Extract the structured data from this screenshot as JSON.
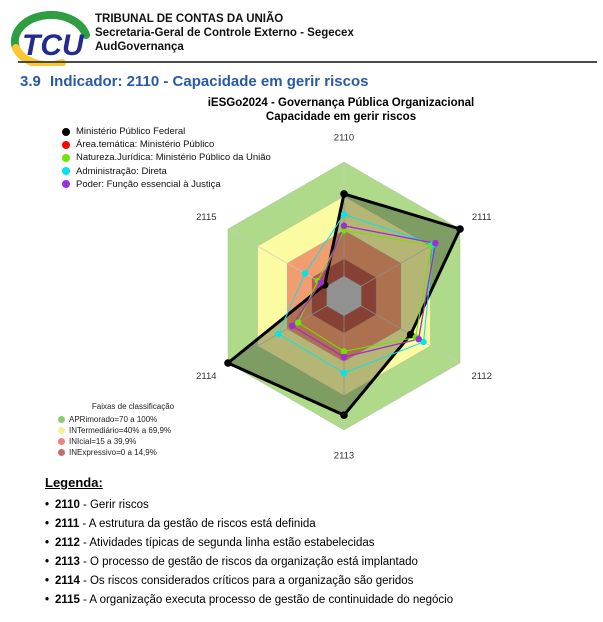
{
  "header": {
    "logo_text": "TCU",
    "org_line1": "TRIBUNAL DE CONTAS DA UNIÃO",
    "org_line2": "Secretaria-Geral de Controle Externo - Segecex",
    "org_line3": "AudGovernança",
    "logo_colors": {
      "blue": "#232c8c",
      "green": "#2e9e41",
      "yellow": "#fdc82f"
    }
  },
  "section": {
    "number": "3.9",
    "title": "Indicador: 2110 - Capacidade em gerir riscos",
    "accent_color": "#2a5aa5"
  },
  "chart_data": {
    "type": "radar",
    "title": "iESGo2024 - Governança Pública Organizacional",
    "subtitle": "Capacidade em gerir riscos",
    "axes": [
      "2110",
      "2111",
      "2112",
      "2113",
      "2114",
      "2115"
    ],
    "axis_range": [
      0,
      100
    ],
    "grid_color": "#c8c8c8",
    "center_hole_color": "#c9c9c9",
    "bands_title": "Faixas de classificação",
    "bands": [
      {
        "label": "APRimorado=70 a 100%",
        "min": 70,
        "max": 100,
        "band_color": "#afda8a",
        "swatch_color": "#8fc878"
      },
      {
        "label": "INTermediário=40% a 69,9%",
        "min": 40,
        "max": 70,
        "band_color": "#fbfba2",
        "swatch_color": "#f2f294"
      },
      {
        "label": "INIcial=15 a 39,9%",
        "min": 15,
        "max": 40,
        "band_color": "#f19d6f",
        "swatch_color": "#ee8282"
      },
      {
        "label": "INExpressivo=0 a 14,9%",
        "min": 0,
        "max": 15,
        "band_color": "#ba5b48",
        "swatch_color": "#c96b6b"
      }
    ],
    "series": [
      {
        "name": "Ministério Público Federal",
        "color": "#000000",
        "fill": "rgba(0,0,0,0.28)",
        "line_width": 3,
        "point_radius": 3.8,
        "values": [
          72,
          100,
          50,
          87,
          100,
          2
        ]
      },
      {
        "name": "Área.temática: Ministério Público",
        "color": "#ff0000",
        "fill": "none",
        "line_width": 1,
        "point_radius": 3.2,
        "values": [
          44,
          75,
          58,
          36,
          35,
          6
        ]
      },
      {
        "name": "Natureza.Jurídica: Ministério Público da União",
        "color": "#6ee400",
        "fill": "none",
        "line_width": 1,
        "point_radius": 3.2,
        "values": [
          40,
          71,
          55,
          31,
          29,
          9
        ]
      },
      {
        "name": "Administração: Direta",
        "color": "#00e5ee",
        "fill": "none",
        "line_width": 1,
        "point_radius": 3.2,
        "values": [
          54,
          73,
          63,
          50,
          49,
          22
        ]
      },
      {
        "name": "Poder: Função essencial à Justiça",
        "color": "#9a30d8",
        "fill": "none",
        "line_width": 1.2,
        "point_radius": 3.2,
        "values": [
          44,
          75,
          58,
          36,
          35,
          6
        ]
      }
    ],
    "legend_position": "top-left"
  },
  "legenda": {
    "heading": "Legenda:",
    "items": [
      {
        "code": "2110",
        "text": "- Gerir riscos"
      },
      {
        "code": "2111",
        "text": "- A estrutura da gestão de riscos está definida"
      },
      {
        "code": "2112",
        "text": "- Atividades típicas de segunda linha estão estabelecidas"
      },
      {
        "code": "2113",
        "text": "- O processo de gestão de riscos da organização está implantado"
      },
      {
        "code": "2114",
        "text": "- Os riscos considerados críticos para a organização são geridos"
      },
      {
        "code": "2115",
        "text": "- A organização executa processo de gestão de continuidade do negócio"
      }
    ]
  }
}
